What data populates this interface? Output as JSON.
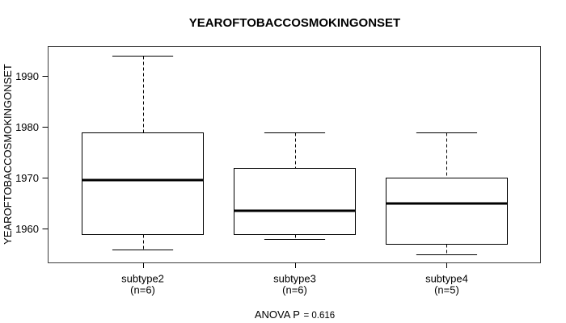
{
  "annotation": {
    "label": "ANOVA P",
    "value": "= 0.616"
  },
  "chart_data": {
    "type": "boxplot",
    "title": "YEAROFTOBACCOSMOKINGONSET",
    "ylabel": "YEAROFTOBACCOSMOKINGONSET",
    "xlabel": "",
    "annotation": "ANOVA P = 0.616",
    "ylim": [
      1953.4,
      1995.9
    ],
    "yticks": [
      1960,
      1970,
      1980,
      1990
    ],
    "grid": false,
    "legend": "none",
    "groups": [
      {
        "label": "subtype2",
        "sublabel": "(n=6)",
        "n": 6,
        "whisker_low": 1956,
        "q1": 1959,
        "median": 1969.5,
        "q3": 1979,
        "whisker_high": 1994
      },
      {
        "label": "subtype3",
        "sublabel": "(n=6)",
        "n": 6,
        "whisker_low": 1958,
        "q1": 1959,
        "median": 1963.5,
        "q3": 1972,
        "whisker_high": 1979
      },
      {
        "label": "subtype4",
        "sublabel": "(n=5)",
        "n": 5,
        "whisker_low": 1955,
        "q1": 1957,
        "median": 1965,
        "q3": 1970,
        "whisker_high": 1979
      }
    ],
    "colors": {
      "box_stroke": "#000000",
      "box_fill": "#ffffff",
      "median": "#000000",
      "frame": "#3d3d3d",
      "text": "#000000"
    }
  }
}
